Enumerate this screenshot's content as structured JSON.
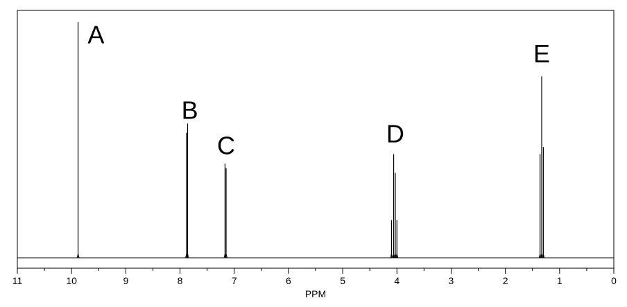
{
  "chart_data": {
    "type": "line",
    "title": "",
    "xlabel": "PPM",
    "ylabel": "",
    "xlim": [
      11,
      0
    ],
    "x_reversed": true,
    "ylim": [
      0,
      1
    ],
    "grid": false,
    "x_ticks": [
      11,
      10,
      9,
      8,
      7,
      6,
      5,
      4,
      3,
      2,
      1,
      0
    ],
    "x_tick_labels": [
      "11",
      "10",
      "9",
      "8",
      "7",
      "6",
      "5",
      "4",
      "3",
      "2",
      "1",
      "0"
    ],
    "x_minor_tick_step": 0.5,
    "series": [
      {
        "peaks": [
          {
            "x": 9.88,
            "y": 1.0
          },
          {
            "x": 7.88,
            "y": 0.53
          },
          {
            "x": 7.86,
            "y": 0.57
          },
          {
            "x": 7.17,
            "y": 0.4
          },
          {
            "x": 7.15,
            "y": 0.38
          },
          {
            "x": 4.1,
            "y": 0.16
          },
          {
            "x": 4.06,
            "y": 0.44
          },
          {
            "x": 4.03,
            "y": 0.36
          },
          {
            "x": 4.0,
            "y": 0.16
          },
          {
            "x": 1.36,
            "y": 0.44
          },
          {
            "x": 1.33,
            "y": 0.77
          },
          {
            "x": 1.3,
            "y": 0.47
          }
        ]
      }
    ],
    "annotations": [
      {
        "text": "A",
        "x": 9.55,
        "y": 0.91
      },
      {
        "text": "B",
        "x": 7.82,
        "y": 0.59
      },
      {
        "text": "C",
        "x": 7.15,
        "y": 0.44
      },
      {
        "text": "D",
        "x": 4.03,
        "y": 0.49
      },
      {
        "text": "E",
        "x": 1.33,
        "y": 0.83
      }
    ]
  }
}
